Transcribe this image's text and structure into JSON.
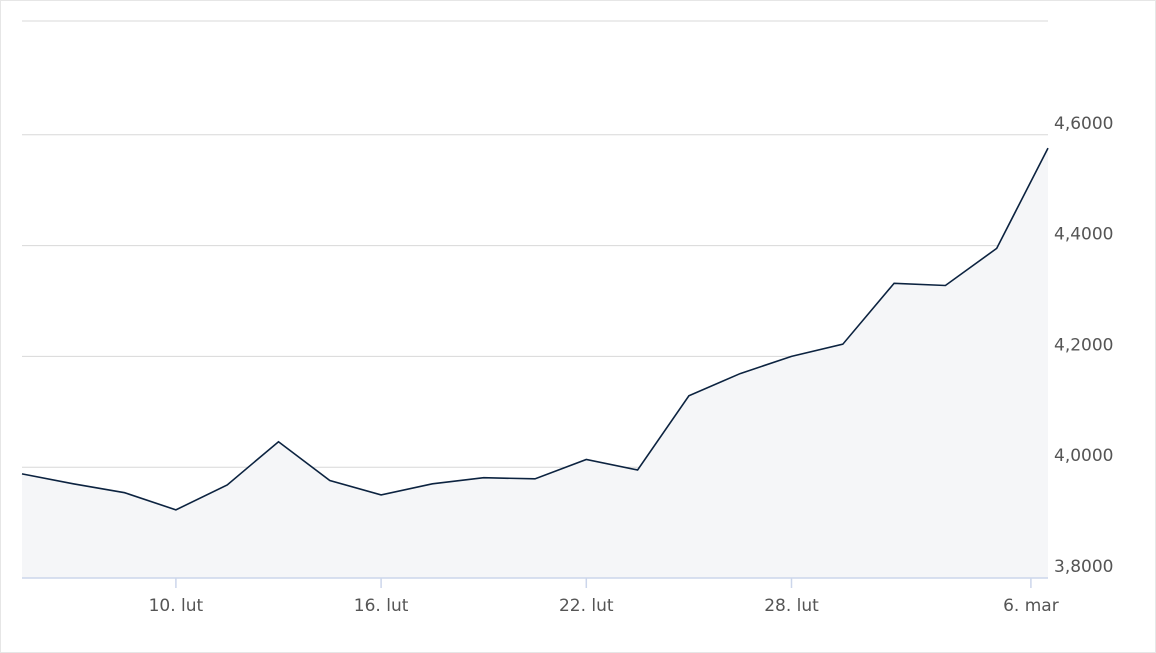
{
  "chart_data": {
    "type": "area",
    "x": [
      5.5,
      7,
      8.5,
      10,
      11.5,
      13,
      14.5,
      16,
      17.5,
      19,
      20.5,
      22,
      23.5,
      25,
      26.5,
      28,
      29.5,
      31,
      32.5,
      34,
      35.5
    ],
    "values": [
      3.988,
      3.97,
      3.954,
      3.923,
      3.968,
      4.046,
      3.976,
      3.95,
      3.97,
      3.981,
      3.979,
      4.014,
      3.995,
      4.129,
      4.169,
      4.2,
      4.222,
      4.332,
      4.328,
      4.395,
      4.576
    ],
    "color": "#0c2340",
    "fill": "#f5f6f8",
    "xlim": [
      5.5,
      35.5
    ],
    "xticks": [
      {
        "value": 10,
        "label": "10. lut"
      },
      {
        "value": 16,
        "label": "16. lut"
      },
      {
        "value": 22,
        "label": "22. lut"
      },
      {
        "value": 28,
        "label": "28. lut"
      },
      {
        "value": 35,
        "label": "6. mar"
      }
    ],
    "ylim": [
      3.8,
      4.8
    ],
    "yticks": [
      {
        "value": 3.8,
        "label": "3,8000"
      },
      {
        "value": 4.0,
        "label": "4,0000"
      },
      {
        "value": 4.2,
        "label": "4,2000"
      },
      {
        "value": 4.4,
        "label": "4,4000"
      },
      {
        "value": 4.6,
        "label": "4,6000"
      }
    ],
    "grid": true
  }
}
